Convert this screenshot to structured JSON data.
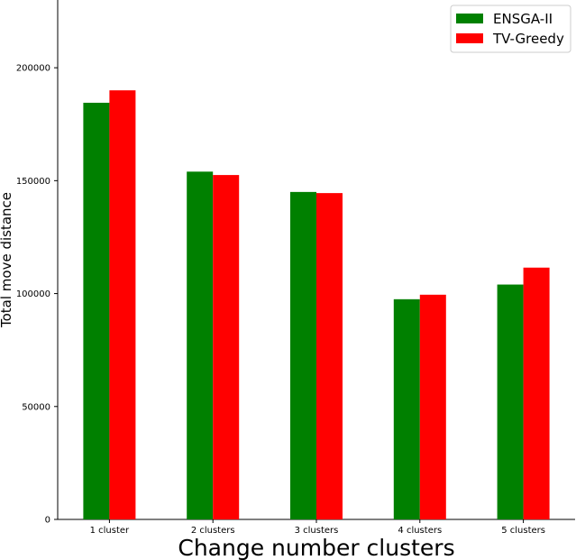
{
  "chart_data": {
    "type": "bar",
    "categories": [
      "1 cluster",
      "2 clusters",
      "3 clusters",
      "4 clusters",
      "5 clusters"
    ],
    "series": [
      {
        "name": "ENSGA-II",
        "color": "#008000",
        "values": [
          184500,
          154000,
          145000,
          97500,
          104000
        ]
      },
      {
        "name": "TV-Greedy",
        "color": "#ff0000",
        "values": [
          190000,
          152500,
          144500,
          99500,
          111500
        ]
      }
    ],
    "title": "",
    "xlabel": "Change number clusters",
    "ylabel": "Total move distance",
    "ylim": [
      0,
      230000
    ],
    "yticks": [
      0,
      50000,
      100000,
      150000,
      200000
    ],
    "ytick_labels": [
      "0",
      "50000",
      "100000",
      "150000",
      "200000"
    ],
    "grid": false,
    "legend_position": "top-right"
  }
}
